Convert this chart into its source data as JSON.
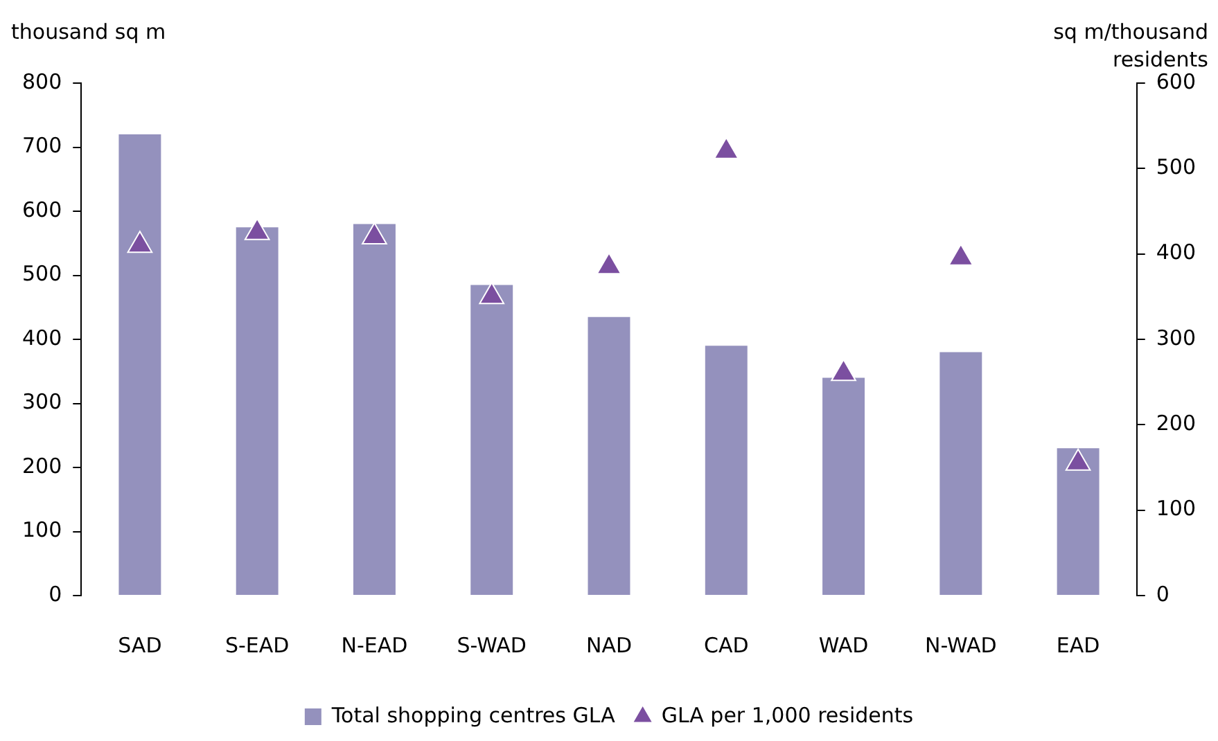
{
  "chart_data": {
    "type": "bar",
    "ylabel": "thousand sq m",
    "y2label": "sq m/thousand residents",
    "categories": [
      "SAD",
      "S-EAD",
      "N-EAD",
      "S-WAD",
      "NAD",
      "CAD",
      "WAD",
      "N-WAD",
      "EAD"
    ],
    "series": [
      {
        "name": "Total shopping centres GLA",
        "color": "#9491bd",
        "values": [
          720,
          575,
          580,
          485,
          435,
          390,
          340,
          380,
          230
        ]
      },
      {
        "name": "GLA per 1,000 residents",
        "type": "scatter",
        "axis": "y2",
        "marker": "triangle",
        "color": "#7b4fa0",
        "values": [
          410,
          425,
          420,
          350,
          385,
          520,
          260,
          395,
          155
        ]
      }
    ],
    "ylim": [
      0,
      800
    ],
    "yticks": [
      0,
      100,
      200,
      300,
      400,
      500,
      600,
      700,
      800
    ],
    "y2lim": [
      0,
      600
    ],
    "y2ticks": [
      0,
      100,
      200,
      300,
      400,
      500,
      600
    ],
    "grid": false,
    "legend": "bottom"
  }
}
